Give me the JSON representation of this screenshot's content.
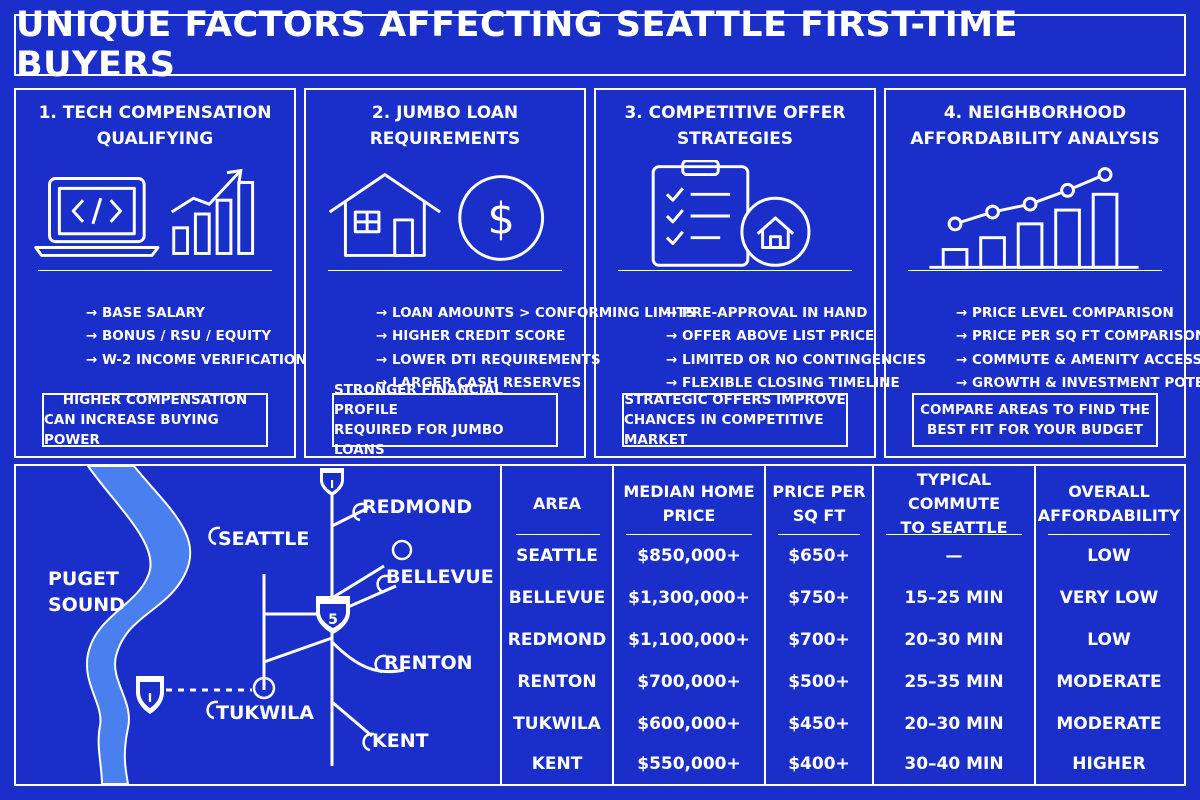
{
  "title": "UNIQUE FACTORS AFFECTING SEATTLE FIRST-TIME BUYERS",
  "panels": [
    {
      "title_lines": [
        "1. TECH COMPENSATION",
        "QUALIFYING"
      ],
      "bullets": [
        "→ BASE SALARY",
        "→ BONUS / RSU / EQUITY",
        "→ W-2 INCOME VERIFICATION"
      ],
      "note_lines": [
        "HIGHER COMPENSATION",
        "CAN INCREASE BUYING POWER"
      ],
      "icons": [
        "laptop-code-icon",
        "growth-bar-chart-icon"
      ]
    },
    {
      "title_lines": [
        "2. JUMBO LOAN",
        "REQUIREMENTS"
      ],
      "bullets": [
        "→ LOAN AMOUNTS > CONFORMING LIMITS",
        "→ HIGHER CREDIT SCORE",
        "→ LOWER DTI REQUIREMENTS",
        "→ LARGER CASH RESERVES"
      ],
      "note_lines": [
        "STRONGER FINANCIAL PROFILE",
        "REQUIRED FOR JUMBO LOANS"
      ],
      "icons": [
        "house-icon",
        "dollar-coin-icon"
      ],
      "dollar_symbol": "$"
    },
    {
      "title_lines": [
        "3. COMPETITIVE OFFER",
        "STRATEGIES"
      ],
      "bullets": [
        "→ PRE-APPROVAL IN HAND",
        "→ OFFER ABOVE LIST PRICE",
        "→ LIMITED OR NO CONTINGENCIES",
        "→ FLEXIBLE CLOSING TIMELINE"
      ],
      "note_lines": [
        "STRATEGIC OFFERS IMPROVE",
        "CHANCES IN COMPETITIVE MARKET"
      ],
      "icons": [
        "checklist-clipboard-icon",
        "home-badge-icon"
      ]
    },
    {
      "title_lines": [
        "4. NEIGHBORHOOD",
        "AFFORDABILITY ANALYSIS"
      ],
      "bullets": [
        "→ PRICE LEVEL COMPARISON",
        "→ PRICE PER SQ FT COMPARISON",
        "→ COMMUTE & AMENITY ACCESS",
        "→ GROWTH & INVESTMENT POTENTIAL"
      ],
      "note_lines": [
        "COMPARE AREAS TO FIND THE",
        "BEST FIT FOR YOUR BUDGET"
      ],
      "icons": [
        "trend-bar-chart-icon"
      ]
    }
  ],
  "map": {
    "labels": {
      "puget_line1": "PUGET",
      "puget_line2": "SOUND",
      "seattle": "SEATTLE",
      "redmond": "REDMOND",
      "bellevue": "BELLEVUE",
      "renton": "RENTON",
      "tukwila": "TUKWILA",
      "kent": "KENT"
    },
    "shields": {
      "i5": "5",
      "top": "I",
      "south": "I"
    },
    "colors": {
      "water": "#4a7ff0",
      "land": "#1a2ec9"
    }
  },
  "table": {
    "headers": [
      [
        "AREA"
      ],
      [
        "MEDIAN HOME",
        "PRICE"
      ],
      [
        "PRICE PER",
        "SQ FT"
      ],
      [
        "TYPICAL COMMUTE",
        "TO SEATTLE"
      ],
      [
        "OVERALL",
        "AFFORDABILITY"
      ]
    ],
    "rows": [
      [
        "SEATTLE",
        "$850,000+",
        "$650+",
        "—",
        "LOW"
      ],
      [
        "BELLEVUE",
        "$1,300,000+",
        "$750+",
        "15–25 MIN",
        "VERY LOW"
      ],
      [
        "REDMOND",
        "$1,100,000+",
        "$700+",
        "20–30 MIN",
        "LOW"
      ],
      [
        "RENTON",
        "$700,000+",
        "$500+",
        "25–35 MIN",
        "MODERATE"
      ],
      [
        "TUKWILA",
        "$600,000+",
        "$450+",
        "20–30 MIN",
        "MODERATE"
      ],
      [
        "KENT",
        "$550,000+",
        "$400+",
        "30–40 MIN",
        "HIGHER"
      ]
    ]
  },
  "colors": {
    "background": "#1a2ec9",
    "foreground": "#ffffff"
  }
}
